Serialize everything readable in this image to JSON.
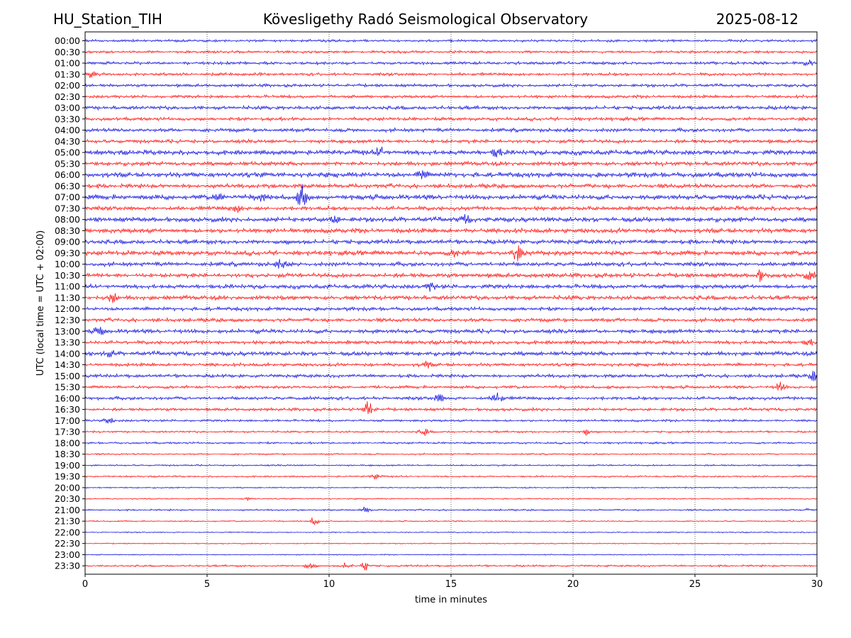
{
  "header": {
    "station": "HU_Station_TIH",
    "observatory": "Kövesligethy Radó Seismological Observatory",
    "date": "2025-08-12"
  },
  "chart_data": {
    "type": "line",
    "title": "Kövesligethy Radó Seismological Observatory",
    "xlabel": "time in minutes",
    "ylabel": "UTC (local time = UTC + 02:00)",
    "xlim": [
      0,
      30
    ],
    "x_ticks": [
      0,
      5,
      10,
      15,
      20,
      25,
      30
    ],
    "grid": "vertical dotted lines at x ticks",
    "colors": [
      "#0000dd",
      "#ff0000"
    ],
    "rows": [
      {
        "label": "00:00",
        "amp": 1.5,
        "events": []
      },
      {
        "label": "00:30",
        "amp": 1.5,
        "events": []
      },
      {
        "label": "01:00",
        "amp": 1.8,
        "events": [
          {
            "t": 29.6,
            "a": 4
          }
        ]
      },
      {
        "label": "01:30",
        "amp": 1.8,
        "events": [
          {
            "t": 0.3,
            "a": 5
          }
        ]
      },
      {
        "label": "02:00",
        "amp": 1.8,
        "events": []
      },
      {
        "label": "02:30",
        "amp": 1.8,
        "events": []
      },
      {
        "label": "03:00",
        "amp": 2.2,
        "events": []
      },
      {
        "label": "03:30",
        "amp": 2.0,
        "events": []
      },
      {
        "label": "04:00",
        "amp": 2.2,
        "events": []
      },
      {
        "label": "04:30",
        "amp": 2.2,
        "events": []
      },
      {
        "label": "05:00",
        "amp": 2.8,
        "events": [
          {
            "t": 12.1,
            "a": 7
          },
          {
            "t": 16.9,
            "a": 6
          }
        ]
      },
      {
        "label": "05:30",
        "amp": 2.5,
        "events": []
      },
      {
        "label": "06:00",
        "amp": 3.0,
        "events": [
          {
            "t": 13.8,
            "a": 6
          }
        ]
      },
      {
        "label": "06:30",
        "amp": 2.5,
        "events": []
      },
      {
        "label": "07:00",
        "amp": 3.0,
        "events": [
          {
            "t": 8.9,
            "a": 16
          },
          {
            "t": 5.5,
            "a": 6
          },
          {
            "t": 7.2,
            "a": 5
          }
        ]
      },
      {
        "label": "07:30",
        "amp": 2.5,
        "events": [
          {
            "t": 6.2,
            "a": 5
          }
        ]
      },
      {
        "label": "08:00",
        "amp": 2.8,
        "events": [
          {
            "t": 15.6,
            "a": 5
          },
          {
            "t": 10.2,
            "a": 5
          }
        ]
      },
      {
        "label": "08:30",
        "amp": 2.8,
        "events": []
      },
      {
        "label": "09:00",
        "amp": 2.6,
        "events": []
      },
      {
        "label": "09:30",
        "amp": 2.8,
        "events": [
          {
            "t": 17.7,
            "a": 10
          },
          {
            "t": 15.2,
            "a": 5
          }
        ]
      },
      {
        "label": "10:00",
        "amp": 2.5,
        "events": [
          {
            "t": 8.0,
            "a": 6
          }
        ]
      },
      {
        "label": "10:30",
        "amp": 2.6,
        "events": [
          {
            "t": 27.7,
            "a": 7
          },
          {
            "t": 29.7,
            "a": 5
          }
        ]
      },
      {
        "label": "11:00",
        "amp": 2.5,
        "events": [
          {
            "t": 14.2,
            "a": 5
          }
        ]
      },
      {
        "label": "11:30",
        "amp": 2.6,
        "events": [
          {
            "t": 1.1,
            "a": 6
          }
        ]
      },
      {
        "label": "12:00",
        "amp": 2.2,
        "events": []
      },
      {
        "label": "12:30",
        "amp": 2.2,
        "events": []
      },
      {
        "label": "13:00",
        "amp": 2.5,
        "events": [
          {
            "t": 0.6,
            "a": 6
          }
        ]
      },
      {
        "label": "13:30",
        "amp": 2.2,
        "events": [
          {
            "t": 29.7,
            "a": 4
          }
        ]
      },
      {
        "label": "14:00",
        "amp": 2.5,
        "events": [
          {
            "t": 1.0,
            "a": 4
          }
        ]
      },
      {
        "label": "14:30",
        "amp": 2.0,
        "events": [
          {
            "t": 14.0,
            "a": 4
          }
        ]
      },
      {
        "label": "15:00",
        "amp": 2.0,
        "events": [
          {
            "t": 29.9,
            "a": 6
          }
        ]
      },
      {
        "label": "15:30",
        "amp": 1.8,
        "events": [
          {
            "t": 28.5,
            "a": 6
          }
        ]
      },
      {
        "label": "16:00",
        "amp": 2.0,
        "events": [
          {
            "t": 16.9,
            "a": 8
          },
          {
            "t": 14.5,
            "a": 5
          }
        ]
      },
      {
        "label": "16:30",
        "amp": 1.8,
        "events": [
          {
            "t": 11.6,
            "a": 14
          }
        ]
      },
      {
        "label": "17:00",
        "amp": 1.4,
        "events": [
          {
            "t": 1.0,
            "a": 4
          }
        ]
      },
      {
        "label": "17:30",
        "amp": 1.2,
        "events": [
          {
            "t": 13.9,
            "a": 5
          },
          {
            "t": 20.5,
            "a": 5
          }
        ]
      },
      {
        "label": "18:00",
        "amp": 1.2,
        "events": []
      },
      {
        "label": "18:30",
        "amp": 1.0,
        "events": []
      },
      {
        "label": "19:00",
        "amp": 1.0,
        "events": []
      },
      {
        "label": "19:30",
        "amp": 1.0,
        "events": [
          {
            "t": 11.9,
            "a": 4
          }
        ]
      },
      {
        "label": "20:00",
        "amp": 0.8,
        "events": []
      },
      {
        "label": "20:30",
        "amp": 0.8,
        "events": [
          {
            "t": 6.7,
            "a": 2
          }
        ]
      },
      {
        "label": "21:00",
        "amp": 1.0,
        "events": [
          {
            "t": 11.5,
            "a": 4
          },
          {
            "t": 29.6,
            "a": 3
          }
        ]
      },
      {
        "label": "21:30",
        "amp": 0.8,
        "events": [
          {
            "t": 9.4,
            "a": 6
          }
        ]
      },
      {
        "label": "22:00",
        "amp": 0.7,
        "events": []
      },
      {
        "label": "22:30",
        "amp": 0.7,
        "events": []
      },
      {
        "label": "23:00",
        "amp": 0.7,
        "events": []
      },
      {
        "label": "23:30",
        "amp": 1.2,
        "events": [
          {
            "t": 11.5,
            "a": 6
          },
          {
            "t": 9.2,
            "a": 4
          },
          {
            "t": 10.7,
            "a": 4
          }
        ]
      }
    ]
  }
}
